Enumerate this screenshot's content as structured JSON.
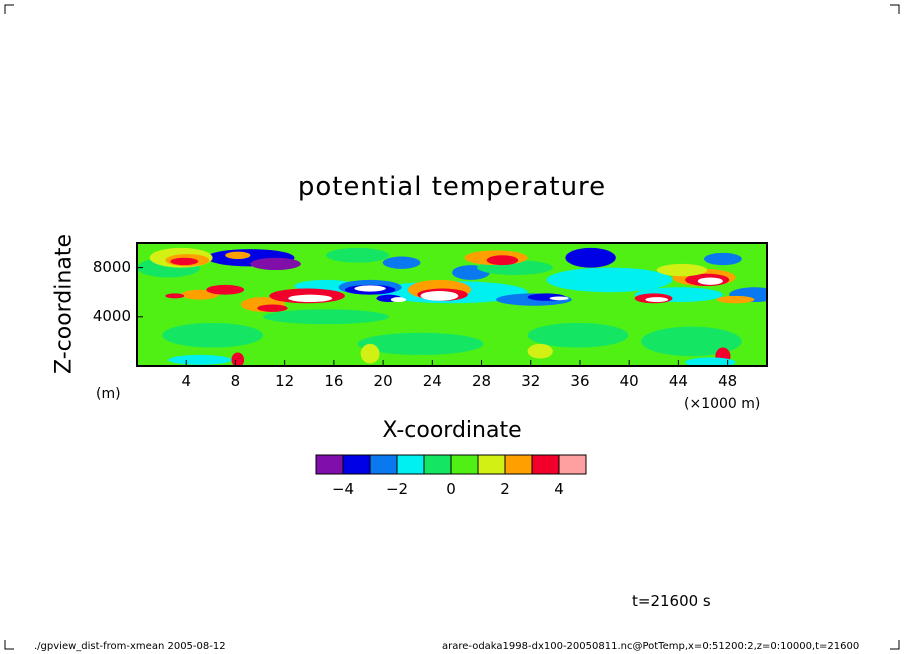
{
  "chart_data": {
    "type": "heatmap",
    "title": "potential temperature",
    "xlabel": "X-coordinate",
    "ylabel": "Z-coordinate",
    "xunit": "(×1000 m)",
    "yunit": "(m)",
    "xlim": [
      0,
      51.2
    ],
    "ylim": [
      0,
      10000
    ],
    "x_ticks": [
      "4",
      "8",
      "12",
      "16",
      "20",
      "24",
      "28",
      "32",
      "36",
      "40",
      "44",
      "48"
    ],
    "y_ticks": [
      "4000",
      "8000"
    ],
    "colorbar": {
      "tick_labels": [
        "-4",
        "-2",
        "0",
        "2",
        "4"
      ],
      "colors": [
        "#7f0fa8",
        "#0000e6",
        "#0a78ee",
        "#00f0f0",
        "#14e664",
        "#50f014",
        "#d2f014",
        "#ffa000",
        "#f0002a",
        "#ffa0a0"
      ]
    },
    "colors": {
      "white": "#ffffff",
      "below": "#000080"
    }
  },
  "annotation": "t=21600 s",
  "footer_left": "./gpview_dist-from-xmean  2005-08-12",
  "footer_right": "arare-odaka1998-dx100-20050811.nc@PotTemp,x=0:51200:2,z=0:10000,t=21600"
}
